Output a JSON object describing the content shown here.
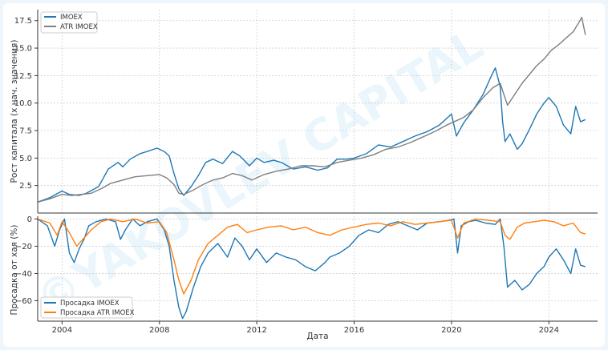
{
  "watermark": "©YAKOVLEV CAPITAL",
  "chart_data": [
    {
      "type": "line",
      "ylabel": "Рост капитала (х нач. значения)",
      "xlabel": "",
      "ylim": [
        0,
        18.5
      ],
      "xlim": [
        2003.0,
        2026.0
      ],
      "yticks": [
        2.5,
        5.0,
        7.5,
        10.0,
        12.5,
        15.0,
        17.5
      ],
      "ytick_labels": [
        "2.5",
        "5.0",
        "7.5",
        "10.0",
        "12.5",
        "15.0",
        "17.5"
      ],
      "grid": true,
      "legend": "top-left",
      "series": [
        {
          "name": "IMOEX",
          "color": "#1f77b4",
          "x": [
            2003.0,
            2003.5,
            2004.0,
            2004.3,
            2004.7,
            2005.0,
            2005.5,
            2005.9,
            2006.3,
            2006.5,
            2006.8,
            2007.2,
            2007.5,
            2007.9,
            2008.2,
            2008.4,
            2008.6,
            2008.8,
            2009.0,
            2009.3,
            2009.6,
            2009.9,
            2010.2,
            2010.6,
            2011.0,
            2011.3,
            2011.7,
            2012.0,
            2012.3,
            2012.7,
            2013.0,
            2013.5,
            2014.0,
            2014.5,
            2014.9,
            2015.3,
            2015.7,
            2016.0,
            2016.5,
            2017.0,
            2017.5,
            2018.0,
            2018.5,
            2019.0,
            2019.5,
            2020.0,
            2020.2,
            2020.5,
            2020.9,
            2021.3,
            2021.6,
            2021.8,
            2022.0,
            2022.1,
            2022.2,
            2022.4,
            2022.7,
            2022.9,
            2023.2,
            2023.5,
            2023.8,
            2024.0,
            2024.3,
            2024.6,
            2024.9,
            2025.1,
            2025.3,
            2025.5
          ],
          "values": [
            1.0,
            1.4,
            2.0,
            1.7,
            1.6,
            1.8,
            2.4,
            4.0,
            4.6,
            4.2,
            4.9,
            5.4,
            5.6,
            5.9,
            5.6,
            5.2,
            3.6,
            2.2,
            1.6,
            2.4,
            3.4,
            4.6,
            4.9,
            4.5,
            5.6,
            5.2,
            4.3,
            5.0,
            4.6,
            4.8,
            4.6,
            4.0,
            4.2,
            3.9,
            4.1,
            4.9,
            4.9,
            5.0,
            5.4,
            6.2,
            6.0,
            6.5,
            7.0,
            7.4,
            8.0,
            9.0,
            7.0,
            8.2,
            9.4,
            10.8,
            12.3,
            13.2,
            11.5,
            8.3,
            6.5,
            7.2,
            5.8,
            6.3,
            7.6,
            9.0,
            10.0,
            10.5,
            9.7,
            8.0,
            7.2,
            9.7,
            8.3,
            8.5
          ]
        },
        {
          "name": "ATR IMOEX",
          "color": "#7f7f7f",
          "x": [
            2003.0,
            2003.5,
            2004.0,
            2004.4,
            2004.8,
            2005.2,
            2005.6,
            2006.0,
            2006.5,
            2007.0,
            2007.5,
            2008.0,
            2008.3,
            2008.6,
            2008.8,
            2009.0,
            2009.4,
            2009.8,
            2010.2,
            2010.6,
            2011.0,
            2011.4,
            2011.8,
            2012.3,
            2012.8,
            2013.3,
            2013.8,
            2014.3,
            2014.8,
            2015.3,
            2015.8,
            2016.3,
            2016.8,
            2017.3,
            2017.8,
            2018.3,
            2018.8,
            2019.3,
            2019.8,
            2020.2,
            2020.5,
            2020.9,
            2021.3,
            2021.7,
            2022.0,
            2022.3,
            2022.6,
            2022.9,
            2023.2,
            2023.5,
            2023.8,
            2024.1,
            2024.4,
            2024.7,
            2025.0,
            2025.2,
            2025.35,
            2025.5
          ],
          "values": [
            1.0,
            1.3,
            1.7,
            1.6,
            1.7,
            1.8,
            2.2,
            2.7,
            3.0,
            3.3,
            3.4,
            3.5,
            3.2,
            2.6,
            1.8,
            1.7,
            2.1,
            2.6,
            3.0,
            3.2,
            3.6,
            3.4,
            3.0,
            3.5,
            3.8,
            4.0,
            4.3,
            4.3,
            4.2,
            4.6,
            4.8,
            5.0,
            5.3,
            5.8,
            6.0,
            6.4,
            6.9,
            7.4,
            8.0,
            8.4,
            8.7,
            9.4,
            10.5,
            11.4,
            11.8,
            9.8,
            10.8,
            11.8,
            12.6,
            13.4,
            14.0,
            14.8,
            15.3,
            15.9,
            16.5,
            17.2,
            17.8,
            16.2
          ]
        }
      ]
    },
    {
      "type": "line",
      "ylabel": "Просадка от хая (%)",
      "xlabel": "Дата",
      "ylim": [
        -75,
        2
      ],
      "xlim": [
        2003.0,
        2026.0
      ],
      "yticks": [
        0,
        -20,
        -40,
        -60
      ],
      "ytick_labels": [
        "0",
        "−20",
        "−40",
        "−60"
      ],
      "xticks": [
        2004,
        2008,
        2012,
        2016,
        2020,
        2024
      ],
      "xtick_labels": [
        "2004",
        "2008",
        "2012",
        "2016",
        "2020",
        "2024"
      ],
      "grid": true,
      "legend": "bottom-left",
      "series": [
        {
          "name": "Просадка IMOEX",
          "color": "#1f77b4",
          "x": [
            2003.0,
            2003.4,
            2003.7,
            2003.9,
            2004.1,
            2004.3,
            2004.5,
            2004.7,
            2004.9,
            2005.1,
            2005.4,
            2005.8,
            2006.2,
            2006.4,
            2006.6,
            2006.9,
            2007.2,
            2007.5,
            2007.9,
            2008.2,
            2008.4,
            2008.6,
            2008.8,
            2008.95,
            2009.1,
            2009.4,
            2009.7,
            2010.0,
            2010.4,
            2010.8,
            2011.1,
            2011.4,
            2011.7,
            2012.0,
            2012.4,
            2012.8,
            2013.2,
            2013.6,
            2014.0,
            2014.4,
            2014.8,
            2015.0,
            2015.4,
            2015.8,
            2016.2,
            2016.6,
            2017.0,
            2017.4,
            2017.8,
            2018.2,
            2018.6,
            2019.0,
            2019.5,
            2019.9,
            2020.1,
            2020.25,
            2020.4,
            2020.7,
            2021.0,
            2021.4,
            2021.8,
            2022.0,
            2022.15,
            2022.3,
            2022.6,
            2022.9,
            2023.2,
            2023.5,
            2023.8,
            2024.0,
            2024.3,
            2024.6,
            2024.9,
            2025.1,
            2025.3,
            2025.5
          ],
          "values": [
            0,
            -5,
            -20,
            -8,
            0,
            -25,
            -32,
            -22,
            -15,
            -5,
            -2,
            0,
            -2,
            -15,
            -8,
            0,
            -5,
            -2,
            0,
            -8,
            -20,
            -45,
            -65,
            -73,
            -68,
            -50,
            -35,
            -25,
            -18,
            -28,
            -14,
            -20,
            -30,
            -22,
            -32,
            -25,
            -28,
            -30,
            -35,
            -38,
            -32,
            -28,
            -25,
            -20,
            -12,
            -8,
            -10,
            -4,
            -2,
            -5,
            -8,
            -3,
            -2,
            -1,
            0,
            -25,
            -5,
            -2,
            -1,
            -3,
            -4,
            0,
            -20,
            -50,
            -45,
            -52,
            -48,
            -40,
            -35,
            -28,
            -22,
            -30,
            -40,
            -22,
            -34,
            -35
          ]
        },
        {
          "name": "Просадка ATR IMOEX",
          "color": "#ff7f0e",
          "x": [
            2003.0,
            2003.5,
            2003.8,
            2004.0,
            2004.3,
            2004.6,
            2004.9,
            2005.2,
            2005.6,
            2006.0,
            2006.5,
            2007.0,
            2007.5,
            2008.0,
            2008.3,
            2008.6,
            2008.8,
            2009.0,
            2009.3,
            2009.6,
            2010.0,
            2010.4,
            2010.8,
            2011.2,
            2011.6,
            2012.0,
            2012.5,
            2013.0,
            2013.5,
            2014.0,
            2014.5,
            2015.0,
            2015.5,
            2016.0,
            2016.5,
            2017.0,
            2017.5,
            2018.0,
            2018.5,
            2019.0,
            2019.5,
            2020.0,
            2020.25,
            2020.5,
            2021.0,
            2021.5,
            2022.0,
            2022.2,
            2022.4,
            2022.7,
            2023.0,
            2023.4,
            2023.8,
            2024.2,
            2024.6,
            2025.0,
            2025.3,
            2025.5
          ],
          "values": [
            0,
            -3,
            -12,
            -2,
            -10,
            -20,
            -14,
            -8,
            -2,
            0,
            -2,
            0,
            -3,
            -2,
            -10,
            -30,
            -45,
            -55,
            -45,
            -30,
            -18,
            -12,
            -6,
            -4,
            -10,
            -8,
            -6,
            -5,
            -8,
            -6,
            -10,
            -12,
            -8,
            -6,
            -4,
            -3,
            -5,
            -2,
            -4,
            -3,
            -2,
            -1,
            -14,
            -3,
            0,
            -1,
            -2,
            -12,
            -15,
            -6,
            -3,
            -2,
            -1,
            -2,
            -5,
            -3,
            -10,
            -11
          ]
        }
      ]
    }
  ]
}
